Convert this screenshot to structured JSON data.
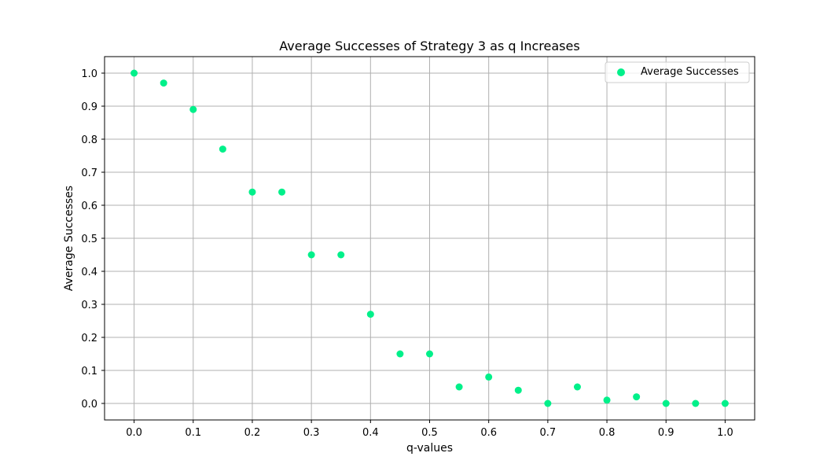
{
  "chart_data": {
    "type": "scatter",
    "title": "Average Successes of Strategy 3 as q Increases",
    "xlabel": "q-values",
    "ylabel": "Average Successes",
    "xlim": [
      -0.05,
      1.05
    ],
    "ylim": [
      -0.05,
      1.05
    ],
    "xticks": [
      "0.0",
      "0.1",
      "0.2",
      "0.3",
      "0.4",
      "0.5",
      "0.6",
      "0.7",
      "0.8",
      "0.9",
      "1.0"
    ],
    "yticks": [
      "0.0",
      "0.1",
      "0.2",
      "0.3",
      "0.4",
      "0.5",
      "0.6",
      "0.7",
      "0.8",
      "0.9",
      "1.0"
    ],
    "grid": true,
    "legend_position": "top-right",
    "series": [
      {
        "name": "Average Successes",
        "color": "#00f08a",
        "x": [
          0.0,
          0.05,
          0.1,
          0.15,
          0.2,
          0.25,
          0.3,
          0.35,
          0.4,
          0.45,
          0.5,
          0.55,
          0.6,
          0.65,
          0.7,
          0.75,
          0.8,
          0.85,
          0.9,
          0.95,
          1.0
        ],
        "y": [
          1.0,
          0.97,
          0.89,
          0.77,
          0.64,
          0.64,
          0.45,
          0.45,
          0.27,
          0.15,
          0.15,
          0.05,
          0.08,
          0.04,
          0.0,
          0.05,
          0.01,
          0.02,
          0.0,
          0.0,
          0.0
        ]
      }
    ]
  }
}
